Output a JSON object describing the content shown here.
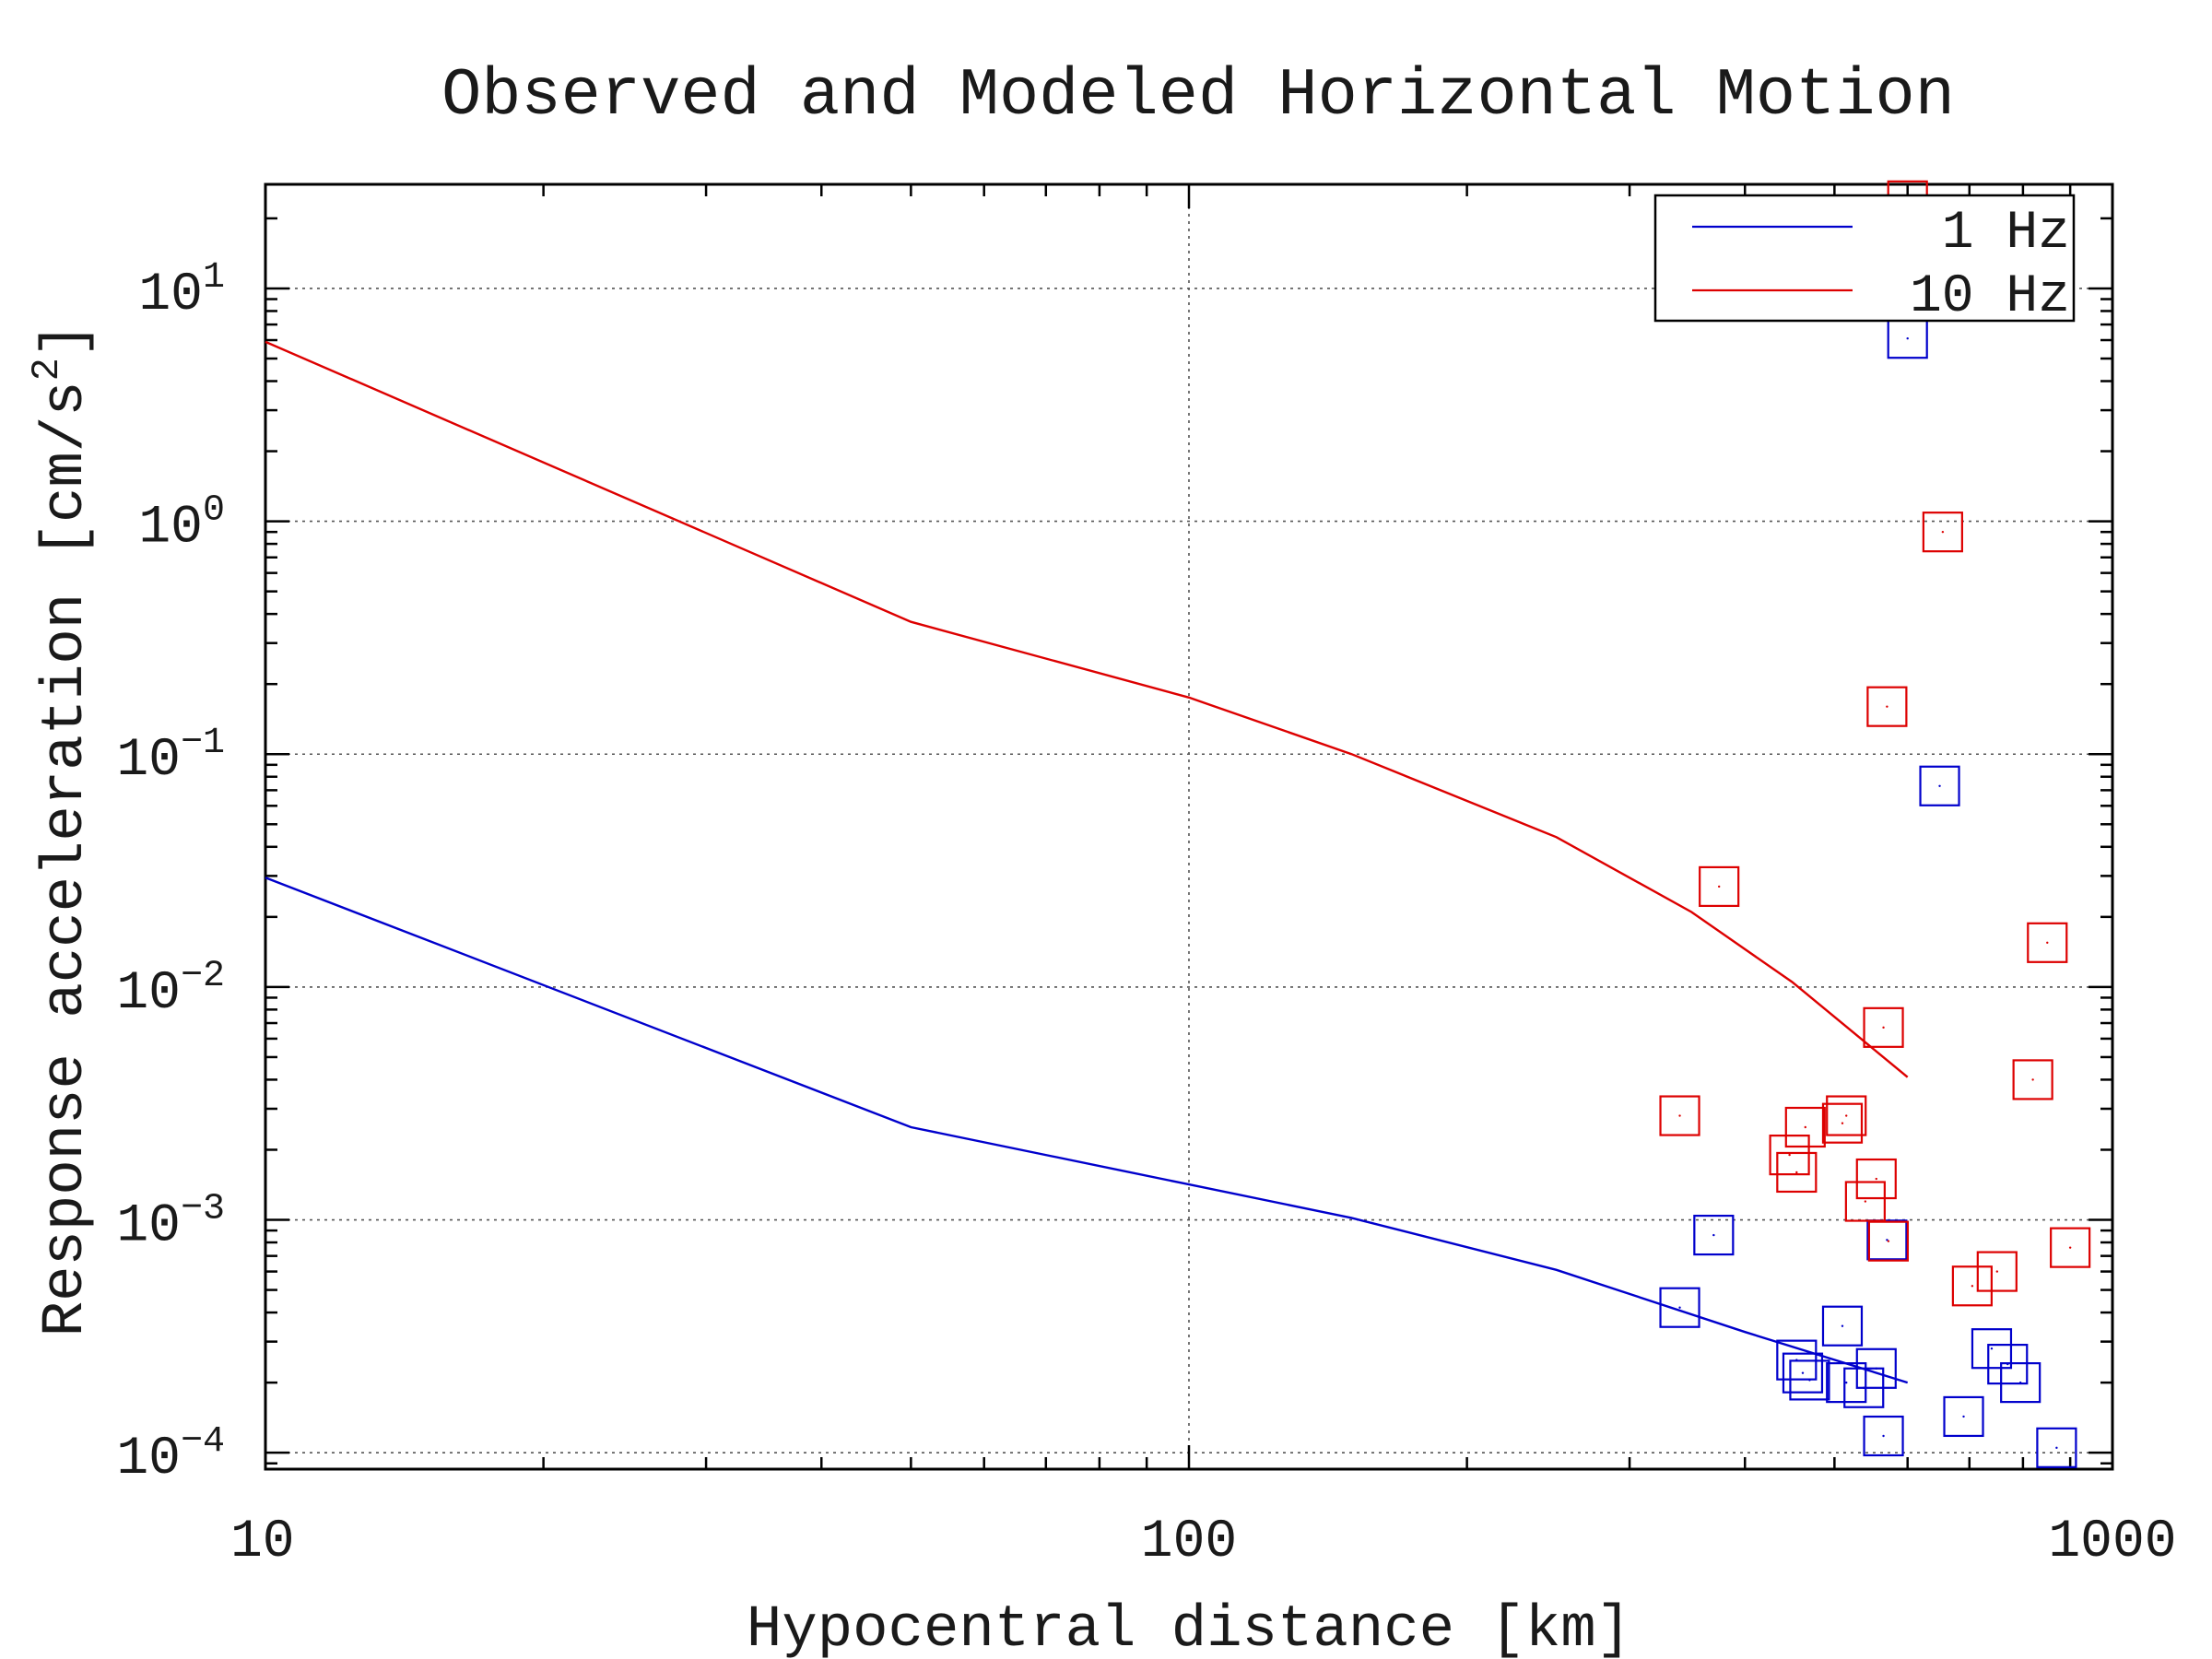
{
  "chart_data": {
    "type": "scatter",
    "title": "Observed and Modeled Horizontal Motion",
    "xlabel": "Hypocentral distance [km]",
    "ylabel_main": "Response acceleration [cm/s",
    "ylabel_sup": "2",
    "ylabel_close": "]",
    "x_scale": "log",
    "y_scale": "log",
    "xlim": [
      10,
      1000
    ],
    "ylim": [
      8.5e-05,
      28
    ],
    "grid": true,
    "legend_position": "top-right",
    "x_ticks": [
      {
        "value": 10,
        "label": "10"
      },
      {
        "value": 100,
        "label": "100"
      },
      {
        "value": 1000,
        "label": "1000"
      }
    ],
    "y_ticks": [
      {
        "value": 10,
        "base": "10",
        "exp": "1"
      },
      {
        "value": 1,
        "base": "10",
        "exp": "0"
      },
      {
        "value": 0.1,
        "base": "10",
        "exp": "−1"
      },
      {
        "value": 0.01,
        "base": "10",
        "exp": "−2"
      },
      {
        "value": 0.001,
        "base": "10",
        "exp": "−3"
      },
      {
        "value": 0.0001,
        "base": "10",
        "exp": "−4"
      }
    ],
    "legend": [
      {
        "label": "1 Hz",
        "color": "#0000cc"
      },
      {
        "label": "10 Hz",
        "color": "#dd0000"
      }
    ],
    "series": [
      {
        "name": "1 Hz",
        "color": "#0000cc",
        "model": [
          {
            "x": 10,
            "y": 0.0295
          },
          {
            "x": 50,
            "y": 0.0025
          },
          {
            "x": 100,
            "y": 0.00142
          },
          {
            "x": 150,
            "y": 0.00102
          },
          {
            "x": 250,
            "y": 0.00061
          },
          {
            "x": 400,
            "y": 0.00033
          },
          {
            "x": 600,
            "y": 0.0002
          }
        ],
        "observed": [
          {
            "x": 340,
            "y": 0.00042
          },
          {
            "x": 370,
            "y": 0.00086
          },
          {
            "x": 455,
            "y": 0.00025
          },
          {
            "x": 462,
            "y": 0.00022
          },
          {
            "x": 470,
            "y": 0.000205
          },
          {
            "x": 510,
            "y": 0.00035
          },
          {
            "x": 515,
            "y": 0.0002
          },
          {
            "x": 538,
            "y": 0.00019
          },
          {
            "x": 555,
            "y": 0.00023
          },
          {
            "x": 565,
            "y": 0.000118
          },
          {
            "x": 570,
            "y": 0.00082
          },
          {
            "x": 600,
            "y": 6.1
          },
          {
            "x": 650,
            "y": 0.073
          },
          {
            "x": 690,
            "y": 0.000143
          },
          {
            "x": 740,
            "y": 0.00028
          },
          {
            "x": 770,
            "y": 0.00024
          },
          {
            "x": 795,
            "y": 0.0002
          },
          {
            "x": 870,
            "y": 0.000105
          }
        ]
      },
      {
        "name": "10 Hz",
        "color": "#dd0000",
        "model": [
          {
            "x": 10,
            "y": 5.9
          },
          {
            "x": 50,
            "y": 0.37
          },
          {
            "x": 100,
            "y": 0.175
          },
          {
            "x": 150,
            "y": 0.1
          },
          {
            "x": 250,
            "y": 0.044
          },
          {
            "x": 350,
            "y": 0.021
          },
          {
            "x": 450,
            "y": 0.0105
          },
          {
            "x": 600,
            "y": 0.0041
          }
        ],
        "observed": [
          {
            "x": 340,
            "y": 0.0028
          },
          {
            "x": 375,
            "y": 0.027
          },
          {
            "x": 447,
            "y": 0.0019
          },
          {
            "x": 455,
            "y": 0.0016
          },
          {
            "x": 465,
            "y": 0.0025
          },
          {
            "x": 510,
            "y": 0.0026
          },
          {
            "x": 515,
            "y": 0.0028
          },
          {
            "x": 540,
            "y": 0.0012
          },
          {
            "x": 555,
            "y": 0.0015
          },
          {
            "x": 565,
            "y": 0.0067
          },
          {
            "x": 570,
            "y": 0.16
          },
          {
            "x": 572,
            "y": 0.00081
          },
          {
            "x": 600,
            "y": 23.8
          },
          {
            "x": 655,
            "y": 0.9
          },
          {
            "x": 705,
            "y": 0.00052
          },
          {
            "x": 750,
            "y": 0.0006
          },
          {
            "x": 820,
            "y": 0.004
          },
          {
            "x": 850,
            "y": 0.0155
          },
          {
            "x": 900,
            "y": 0.00076
          }
        ]
      }
    ]
  }
}
